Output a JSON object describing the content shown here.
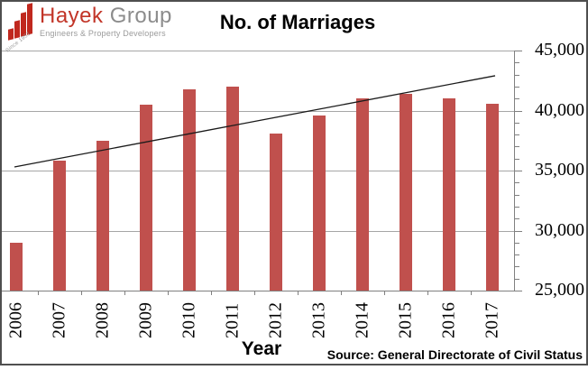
{
  "logo": {
    "name_primary": "Hayek",
    "name_secondary": "Group",
    "tagline": "Engineers & Property Developers",
    "since": "Since 1951",
    "colors": {
      "red": "#c0281e",
      "gray": "#8c8c8c"
    }
  },
  "chart_data": {
    "type": "bar",
    "title": "No. of Marriages",
    "xlabel": "Year",
    "ylabel": "",
    "source": "Source: General Directorate of Civil Status",
    "categories": [
      "2006",
      "2007",
      "2008",
      "2009",
      "2010",
      "2011",
      "2012",
      "2013",
      "2014",
      "2015",
      "2016",
      "2017"
    ],
    "values": [
      29000,
      35800,
      37500,
      40500,
      41800,
      42000,
      38100,
      39600,
      41000,
      41400,
      41000,
      40600
    ],
    "ylim": [
      25000,
      45000
    ],
    "yticks": [
      {
        "label": "25,000",
        "value": 25000
      },
      {
        "label": "30,000",
        "value": 30000
      },
      {
        "label": "35,000",
        "value": 35000
      },
      {
        "label": "40,000",
        "value": 40000
      },
      {
        "label": "45,000",
        "value": 45000
      }
    ],
    "minor_tick_interval": 1000,
    "grid": true,
    "legend": false,
    "bar_color": "#c0504d",
    "grid_color": "#a6a6a6",
    "axis_color": "#808080",
    "trendline": {
      "type": "linear",
      "start_value": 35300,
      "end_value": 42900,
      "color": "#1a1a1a"
    }
  }
}
